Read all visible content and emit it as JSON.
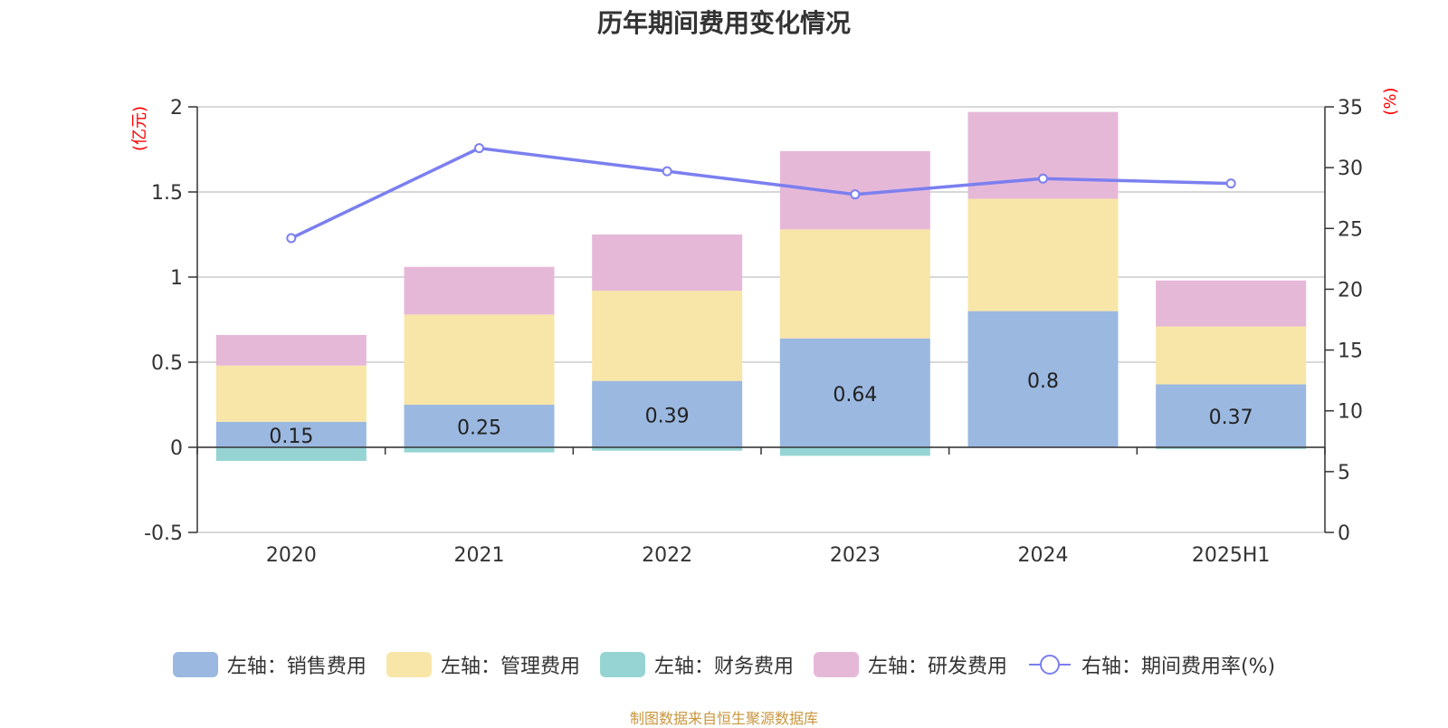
{
  "title": "历年期间费用变化情况",
  "source_note": "制图数据来自恒生聚源数据库",
  "chart_data": {
    "type": "bar",
    "stacked": true,
    "categories": [
      "2020",
      "2021",
      "2022",
      "2023",
      "2024",
      "2025H1"
    ],
    "left_axis": {
      "unit_label": "(亿元)",
      "ylim": [
        -0.5,
        2
      ],
      "ticks": [
        "-0.5",
        "0",
        "0.5",
        "1",
        "1.5",
        "2"
      ]
    },
    "right_axis": {
      "unit_label": "(%)",
      "ylim": [
        0,
        35
      ],
      "ticks": [
        "0",
        "5",
        "10",
        "15",
        "20",
        "25",
        "30",
        "35"
      ]
    },
    "series": [
      {
        "name": "左轴：销售费用",
        "axis": "left",
        "color": "#9bb8e0",
        "values": [
          0.15,
          0.25,
          0.39,
          0.64,
          0.8,
          0.37
        ],
        "labels": [
          "0.15",
          "0.25",
          "0.39",
          "0.64",
          "0.8",
          "0.37"
        ]
      },
      {
        "name": "左轴：管理费用",
        "axis": "left",
        "color": "#f8e6a8",
        "values": [
          0.33,
          0.53,
          0.53,
          0.64,
          0.66,
          0.34
        ]
      },
      {
        "name": "左轴：财务费用",
        "axis": "left",
        "color": "#96d4d4",
        "values": [
          -0.08,
          -0.03,
          -0.02,
          -0.05,
          0.0,
          -0.01
        ]
      },
      {
        "name": "左轴：研发费用",
        "axis": "left",
        "color": "#e6b8d8",
        "values": [
          0.18,
          0.28,
          0.33,
          0.46,
          0.51,
          0.27
        ]
      },
      {
        "name": "右轴：期间费用率(%)",
        "axis": "right",
        "type": "line",
        "color": "#7b7fef",
        "values": [
          24.2,
          31.6,
          29.7,
          27.8,
          29.1,
          28.7
        ]
      }
    ],
    "grid": true,
    "legend_position": "bottom"
  }
}
